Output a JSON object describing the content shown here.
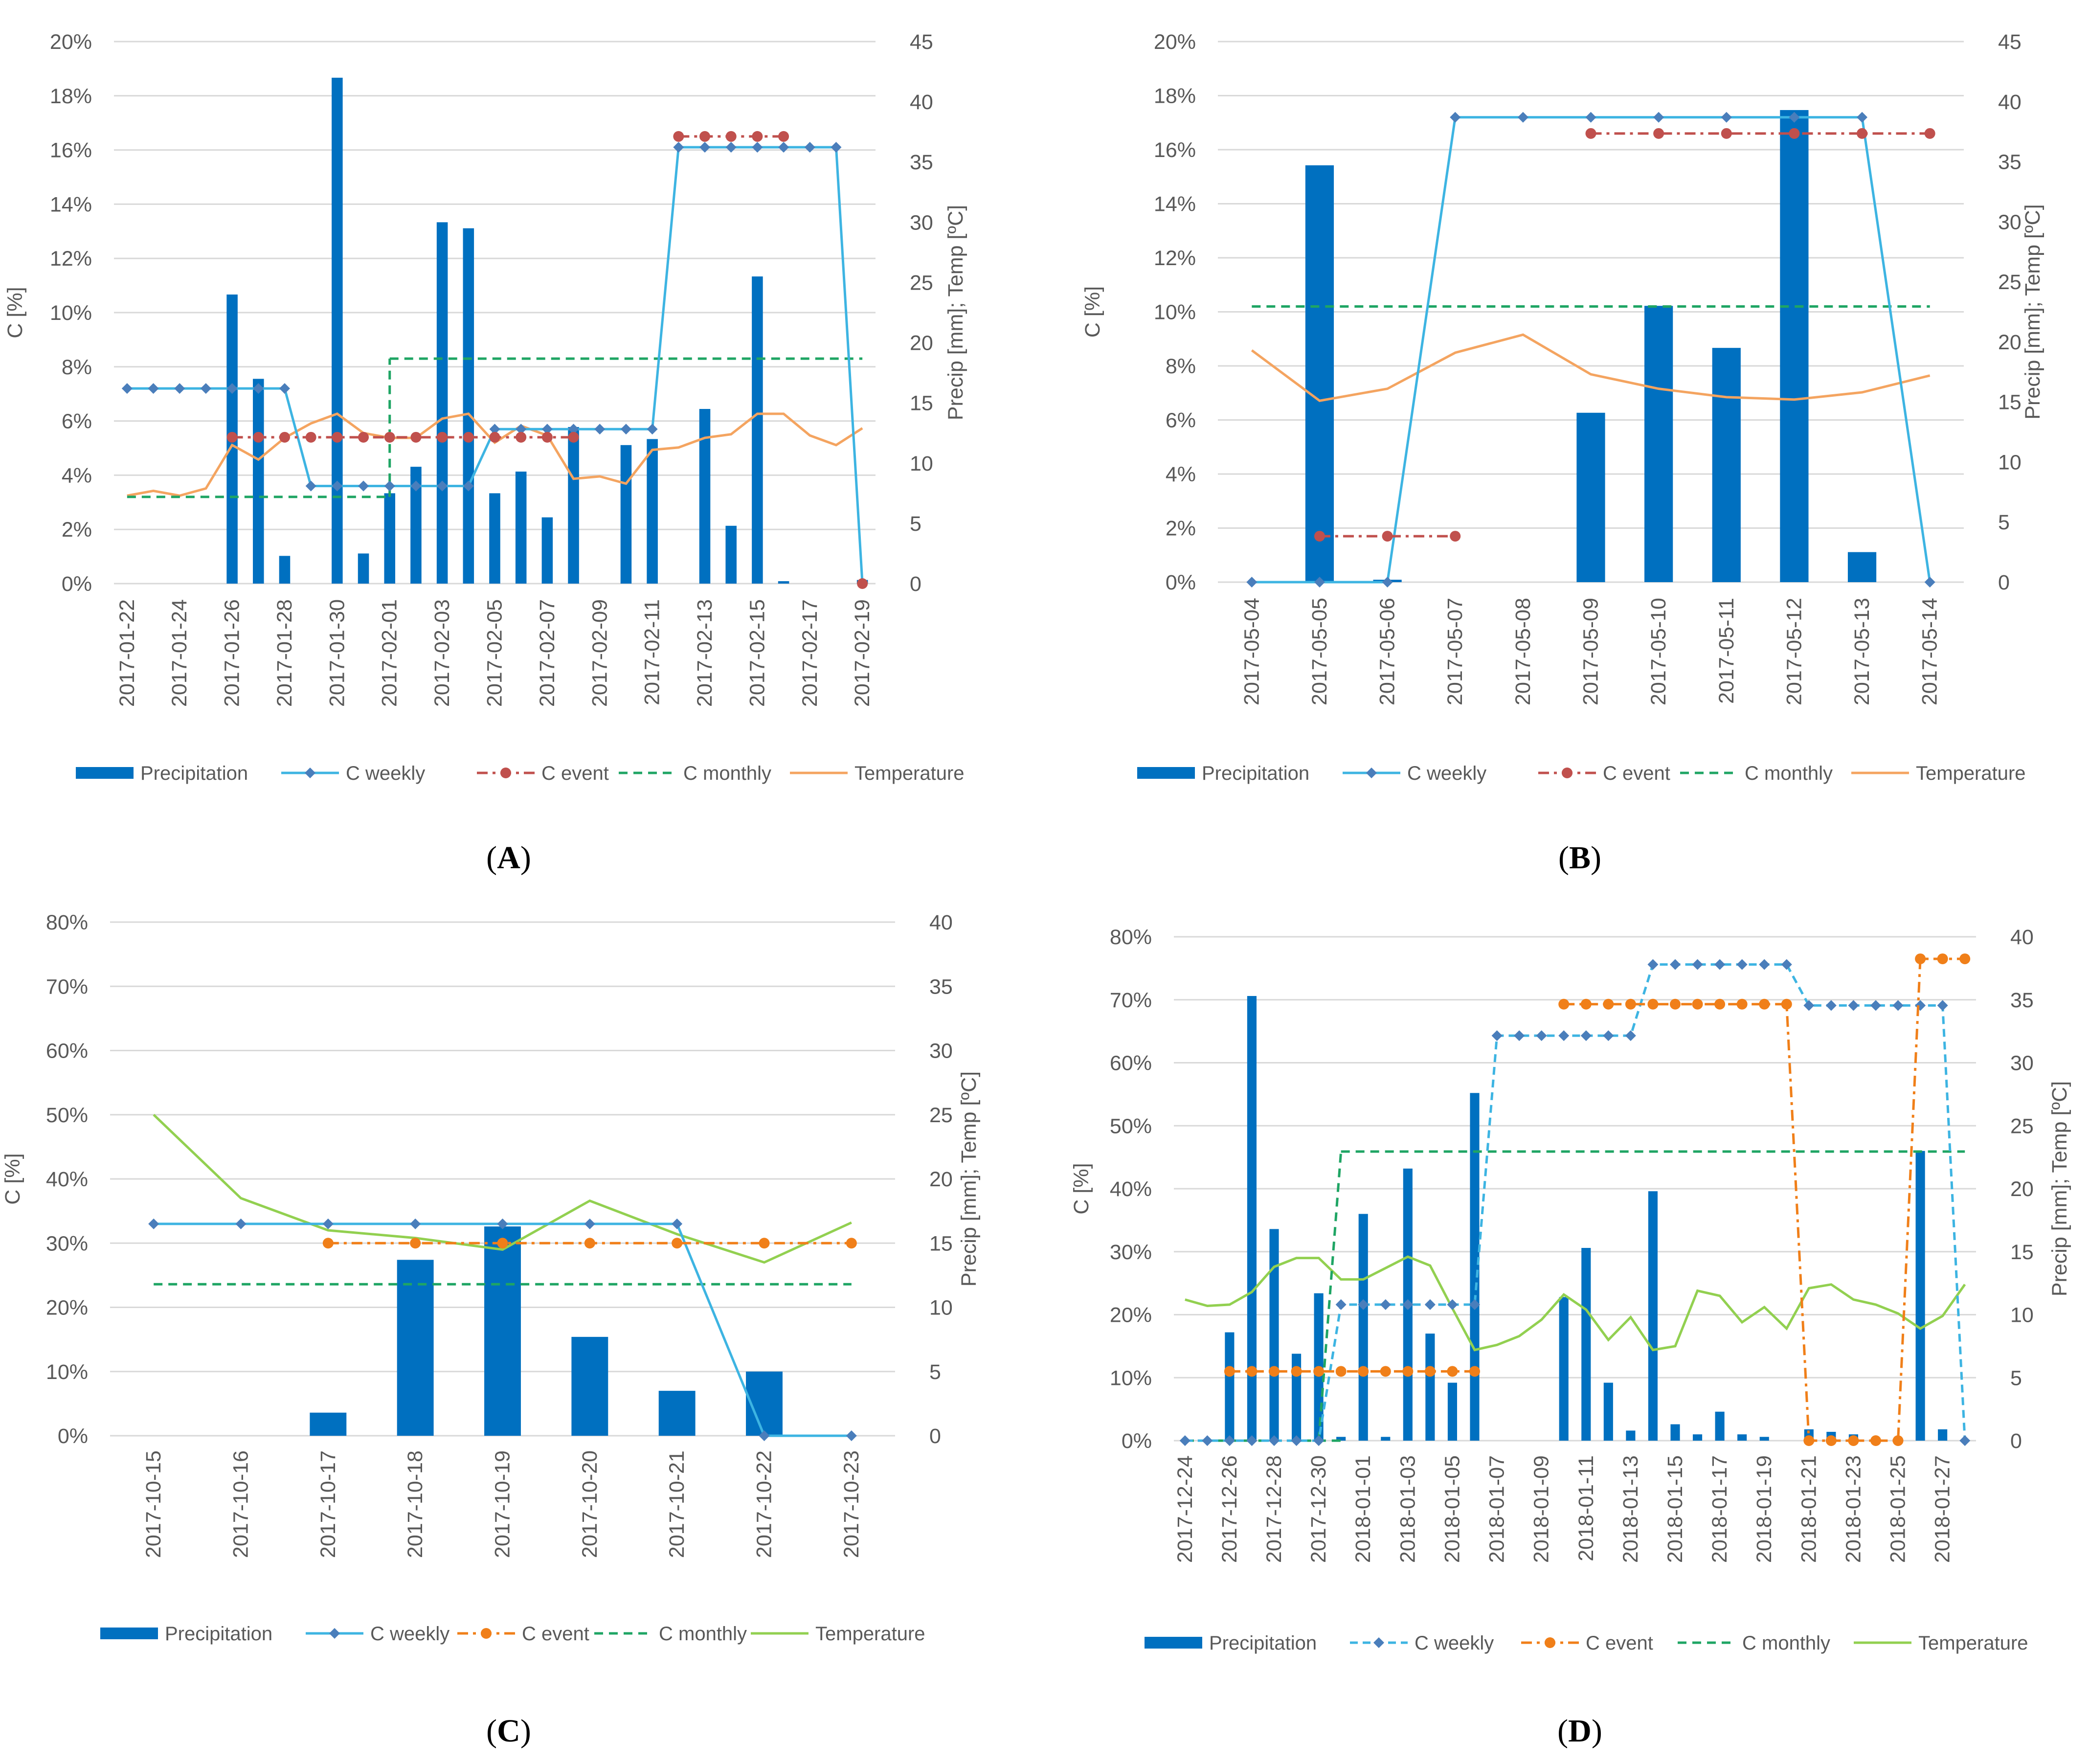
{
  "colors": {
    "precipitation": "#0070C0",
    "c_weekly": "#3DB4E2",
    "c_weekly_marker": "#4A7EBB",
    "c_event_ab": "#C0504D",
    "c_event_cd": "#F07F19",
    "c_monthly": "#1FA564",
    "temperature_ab": "#F4A460",
    "temperature_cd": "#92D050",
    "grid": "#D9D9D9",
    "text": "#595959"
  },
  "legend_labels": {
    "precipitation": "Precipitation",
    "c_weekly": "C weekly",
    "c_event": "C event",
    "c_monthly": "C monthly",
    "temperature": "Temperature"
  },
  "chart_data": [
    {
      "id": "A",
      "panel_label": "A",
      "type": "bar+line",
      "ylabel_left": "C [%]",
      "ylabel_right": "Precip [mm]; Temp [ºC]",
      "left_axis": {
        "min": 0,
        "max": 20,
        "step": 2,
        "ticks": [
          "0%",
          "2%",
          "4%",
          "6%",
          "8%",
          "10%",
          "12%",
          "14%",
          "16%",
          "18%",
          "20%"
        ]
      },
      "right_axis": {
        "min": 0,
        "max": 45,
        "step": 5,
        "ticks": [
          "0",
          "5",
          "10",
          "15",
          "20",
          "25",
          "30",
          "35",
          "40",
          "45"
        ]
      },
      "x_count": 29,
      "tick_labels": [
        "2017-01-22",
        "2017-01-24",
        "2017-01-26",
        "2017-01-28",
        "2017-01-30",
        "2017-02-01",
        "2017-02-03",
        "2017-02-05",
        "2017-02-07",
        "2017-02-09",
        "2017-02-11",
        "2017-02-13",
        "2017-02-15",
        "2017-02-17",
        "2017-02-19"
      ],
      "tick_every": 2,
      "precipitation": [
        null,
        null,
        null,
        null,
        24,
        17,
        2.3,
        null,
        42,
        2.5,
        7.5,
        9.7,
        30,
        29.5,
        7.5,
        9.3,
        5.5,
        13,
        null,
        11.5,
        12,
        null,
        14.5,
        4.8,
        25.5,
        0.2,
        null,
        null,
        0.3
      ],
      "c_weekly": [
        7.2,
        7.2,
        7.2,
        7.2,
        7.2,
        7.2,
        7.2,
        3.6,
        3.6,
        3.6,
        3.6,
        3.6,
        3.6,
        3.6,
        5.7,
        5.7,
        5.7,
        5.7,
        5.7,
        5.7,
        5.7,
        16.1,
        16.1,
        16.1,
        16.1,
        16.1,
        16.1,
        16.1,
        0
      ],
      "c_event": [
        null,
        null,
        null,
        null,
        5.4,
        5.4,
        5.4,
        5.4,
        5.4,
        5.4,
        5.4,
        5.4,
        5.4,
        5.4,
        5.4,
        5.4,
        5.4,
        5.4,
        null,
        null,
        null,
        16.5,
        16.5,
        16.5,
        16.5,
        16.5,
        null,
        null,
        0
      ],
      "c_event_segments": [
        [
          4,
          17
        ],
        [
          21,
          25
        ],
        [
          27,
          28
        ]
      ],
      "c_monthly": {
        "steps": [
          [
            0,
            10,
            3.2
          ],
          [
            10,
            28,
            8.3
          ]
        ]
      },
      "temperature": [
        7.3,
        7.7,
        7.3,
        7.9,
        11.5,
        10.3,
        12.1,
        13.3,
        14.1,
        12.5,
        12.1,
        12.1,
        13.7,
        14.1,
        11.7,
        13.1,
        12.3,
        8.7,
        8.9,
        8.3,
        11.1,
        11.3,
        12.1,
        12.4,
        14.1,
        14.1,
        12.3,
        11.5,
        12.9
      ],
      "tick_label_values_shown": true
    },
    {
      "id": "B",
      "panel_label": "B",
      "type": "bar+line",
      "ylabel_left": "C [%]",
      "ylabel_right": "Precip [mm]; Temp [ºC]",
      "left_axis": {
        "min": 0,
        "max": 20,
        "step": 2,
        "ticks": [
          "0%",
          "2%",
          "4%",
          "6%",
          "8%",
          "10%",
          "12%",
          "14%",
          "16%",
          "18%",
          "20%"
        ]
      },
      "right_axis": {
        "min": 0,
        "max": 45,
        "step": 5,
        "ticks": [
          "0",
          "5",
          "10",
          "15",
          "20",
          "25",
          "30",
          "35",
          "40",
          "45"
        ]
      },
      "x_count": 11,
      "tick_labels": [
        "2017-05-04",
        "2017-05-05",
        "2017-05-06",
        "2017-05-07",
        "2017-05-08",
        "2017-05-09",
        "2017-05-10",
        "2017-05-11",
        "2017-05-12",
        "2017-05-13",
        "2017-05-14"
      ],
      "tick_every": 1,
      "precipitation": [
        null,
        34.7,
        0.2,
        null,
        null,
        14.1,
        23,
        19.5,
        39.3,
        2.5,
        null
      ],
      "c_weekly": [
        0,
        0,
        0,
        17.2,
        17.2,
        17.2,
        17.2,
        17.2,
        17.2,
        17.2,
        0
      ],
      "c_event": [
        null,
        1.7,
        1.7,
        1.7,
        null,
        16.6,
        16.6,
        16.6,
        16.6,
        16.6,
        16.6
      ],
      "c_event_segments": [
        [
          1,
          3
        ],
        [
          5,
          10
        ]
      ],
      "c_monthly": {
        "steps": [
          [
            0,
            10,
            10.2
          ]
        ]
      },
      "temperature": [
        19.3,
        15.1,
        16.1,
        19.1,
        20.6,
        17.3,
        16.1,
        15.4,
        15.2,
        15.8,
        17.2
      ]
    },
    {
      "id": "C",
      "panel_label": "C",
      "type": "bar+line",
      "ylabel_left": "C [%]",
      "ylabel_right": "Precip [mm]; Temp [ºC]",
      "left_axis": {
        "min": 0,
        "max": 80,
        "step": 10,
        "ticks": [
          "0%",
          "10%",
          "20%",
          "30%",
          "40%",
          "50%",
          "60%",
          "70%",
          "80%"
        ]
      },
      "right_axis": {
        "min": 0,
        "max": 40,
        "step": 5,
        "ticks": [
          "0",
          "5",
          "10",
          "15",
          "20",
          "25",
          "30",
          "35",
          "40"
        ]
      },
      "x_count": 9,
      "tick_labels": [
        "2017-10-15",
        "2017-10-16",
        "2017-10-17",
        "2017-10-18",
        "2017-10-19",
        "2017-10-20",
        "2017-10-21",
        "2017-10-22",
        "2017-10-23"
      ],
      "tick_every": 1,
      "precipitation": [
        null,
        null,
        1.8,
        13.7,
        16.3,
        7.7,
        3.5,
        5,
        null
      ],
      "c_weekly": [
        33,
        33,
        33,
        33,
        33,
        33,
        33,
        0,
        0
      ],
      "c_event": [
        null,
        null,
        30,
        30,
        30,
        30,
        30,
        30,
        30
      ],
      "c_event_segments": [
        [
          2,
          8
        ]
      ],
      "c_monthly": {
        "steps": [
          [
            0,
            8,
            23.6
          ]
        ]
      },
      "temperature": [
        25,
        18.5,
        16,
        15.4,
        14.5,
        18.3,
        15.7,
        13.5,
        16.6
      ]
    },
    {
      "id": "D",
      "panel_label": "D",
      "type": "bar+line",
      "ylabel_left": "C [%]",
      "ylabel_right": "Precip [mm]; Temp [ºC]",
      "left_axis": {
        "min": 0,
        "max": 80,
        "step": 10,
        "ticks": [
          "0%",
          "10%",
          "20%",
          "30%",
          "40%",
          "50%",
          "60%",
          "70%",
          "80%"
        ]
      },
      "right_axis": {
        "min": 0,
        "max": 40,
        "step": 5,
        "ticks": [
          "0",
          "5",
          "10",
          "15",
          "20",
          "25",
          "30",
          "35",
          "40"
        ]
      },
      "x_count": 36,
      "tick_labels": [
        "2017-12-24",
        "2017-12-26",
        "2017-12-28",
        "2017-12-30",
        "2018-01-01",
        "2018-01-03",
        "2018-01-05",
        "2018-01-07",
        "2018-01-09",
        "2018-01-11",
        "2018-01-13",
        "2018-01-15",
        "2018-01-17",
        "2018-01-19",
        "2018-01-21",
        "2018-01-23",
        "2018-01-25",
        "2018-01-27"
      ],
      "tick_every": 2,
      "precipitation": [
        null,
        null,
        8.6,
        35.3,
        16.8,
        6.9,
        11.7,
        0.3,
        18,
        0.3,
        21.6,
        8.5,
        4.6,
        27.6,
        null,
        null,
        null,
        11.4,
        15.3,
        4.6,
        0.8,
        19.8,
        1.3,
        0.5,
        2.3,
        0.5,
        0.3,
        null,
        0.9,
        0.7,
        0.5,
        null,
        null,
        23,
        0.9,
        null
      ],
      "c_weekly": [
        0,
        0,
        0,
        0,
        0,
        0,
        0,
        21.6,
        21.6,
        21.6,
        21.6,
        21.6,
        21.6,
        21.6,
        64.3,
        64.3,
        64.3,
        64.3,
        64.3,
        64.3,
        64.3,
        75.6,
        75.6,
        75.6,
        75.6,
        75.6,
        75.6,
        75.6,
        69.1,
        69.1,
        69.1,
        69.1,
        69.1,
        69.1,
        69.1,
        0
      ],
      "c_event": [
        null,
        null,
        11,
        11,
        11,
        11,
        11,
        11,
        11,
        11,
        11,
        11,
        11,
        11,
        null,
        null,
        null,
        69.3,
        69.3,
        69.3,
        69.3,
        69.3,
        69.3,
        69.3,
        69.3,
        69.3,
        69.3,
        69.3,
        0,
        0,
        0,
        0,
        0,
        76.5,
        76.5,
        76.5
      ],
      "c_event_segments": [
        [
          2,
          13
        ],
        [
          17,
          35
        ]
      ],
      "c_monthly": {
        "steps": [
          [
            0,
            7,
            0
          ],
          [
            7,
            35,
            45.9
          ]
        ]
      },
      "c_monthly_rise": [
        6,
        7
      ],
      "temperature": [
        11.2,
        10.7,
        10.8,
        11.8,
        13.8,
        14.5,
        14.5,
        12.8,
        12.8,
        13.7,
        14.6,
        13.9,
        10.5,
        7.2,
        7.6,
        8.3,
        9.6,
        11.6,
        10.4,
        8,
        9.8,
        7.2,
        7.5,
        11.9,
        11.5,
        9.4,
        10.6,
        8.9,
        12.1,
        12.4,
        11.2,
        10.8,
        10.1,
        8.9,
        9.9,
        12.4
      ]
    }
  ]
}
